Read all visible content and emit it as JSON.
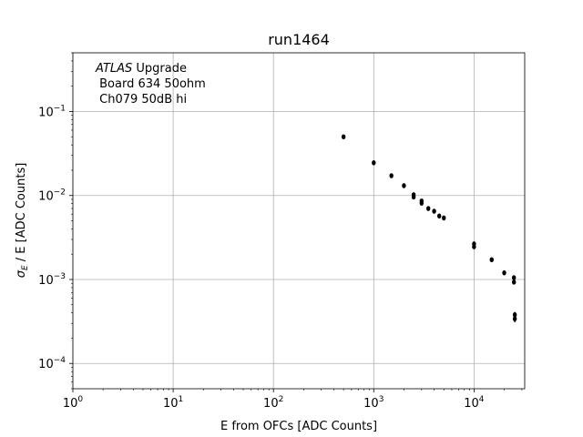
{
  "chart_data": {
    "type": "scatter",
    "title": "run1464",
    "xlabel": "E from OFCs [ADC Counts]",
    "ylabel": {
      "sigma": "σ",
      "subscript": "E",
      "rest": " / E [ADC Counts]"
    },
    "xscale": "log",
    "yscale": "log",
    "xlim": [
      1,
      32000
    ],
    "ylim": [
      5e-05,
      0.5
    ],
    "grid": true,
    "x_ticks": [
      {
        "base": "10",
        "exp": "0",
        "value": 1
      },
      {
        "base": "10",
        "exp": "1",
        "value": 10
      },
      {
        "base": "10",
        "exp": "2",
        "value": 100
      },
      {
        "base": "10",
        "exp": "3",
        "value": 1000
      },
      {
        "base": "10",
        "exp": "4",
        "value": 10000
      }
    ],
    "y_ticks": [
      {
        "base": "10",
        "exp": "−1",
        "value": 0.1
      },
      {
        "base": "10",
        "exp": "−2",
        "value": 0.01
      },
      {
        "base": "10",
        "exp": "−3",
        "value": 0.001
      },
      {
        "base": "10",
        "exp": "−4",
        "value": 0.0001
      }
    ],
    "annotation": {
      "atlas": "ATLAS",
      "line1_rest": " Upgrade",
      "line2": " Board 634 50ohm",
      "line3": " Ch079 50dB hi"
    },
    "marker_color": "#000000",
    "points": [
      {
        "x": 500,
        "y": 0.05,
        "yerr": 0.002
      },
      {
        "x": 1000,
        "y": 0.0245,
        "yerr": 0.001
      },
      {
        "x": 1500,
        "y": 0.0172,
        "yerr": 0.0008
      },
      {
        "x": 2000,
        "y": 0.0131,
        "yerr": 0.0006
      },
      {
        "x": 2500,
        "y": 0.0102,
        "yerr": 0.0005
      },
      {
        "x": 2500,
        "y": 0.0096,
        "yerr": 0.0005
      },
      {
        "x": 3000,
        "y": 0.0086,
        "yerr": 0.0004
      },
      {
        "x": 3000,
        "y": 0.0081,
        "yerr": 0.0004
      },
      {
        "x": 3500,
        "y": 0.007,
        "yerr": 0.0003
      },
      {
        "x": 4000,
        "y": 0.0065,
        "yerr": 0.0003
      },
      {
        "x": 4500,
        "y": 0.0057,
        "yerr": 0.0003
      },
      {
        "x": 5000,
        "y": 0.0054,
        "yerr": 0.0003
      },
      {
        "x": 10000,
        "y": 0.00265,
        "yerr": 0.00012
      },
      {
        "x": 10000,
        "y": 0.00245,
        "yerr": 0.00012
      },
      {
        "x": 15000,
        "y": 0.00172,
        "yerr": 8e-05
      },
      {
        "x": 20000,
        "y": 0.0012,
        "yerr": 6e-05
      },
      {
        "x": 25000,
        "y": 0.00105,
        "yerr": 5e-05
      },
      {
        "x": 25000,
        "y": 0.00093,
        "yerr": 5e-05
      },
      {
        "x": 25500,
        "y": 0.00038,
        "yerr": 3e-05
      },
      {
        "x": 25500,
        "y": 0.00034,
        "yerr": 3e-05
      }
    ]
  }
}
